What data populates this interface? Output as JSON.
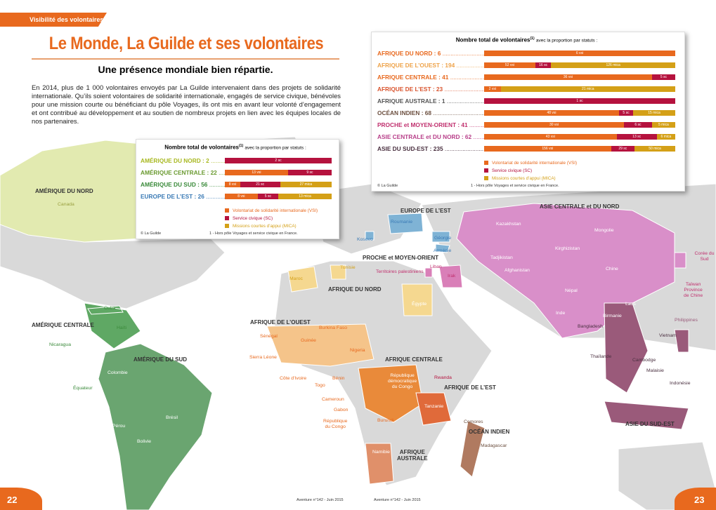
{
  "header": {
    "tab": "Visibilité des volontaires",
    "title": "Le Monde, La Guilde et ses volontaires",
    "subtitle": "Une présence mondiale bien répartie.",
    "paragraph": "En 2014, plus de 1 000 volontaires envoyés par La Guilde intervenaient dans des projets de solidarité internationale. Qu’ils soient volontaires de solidarité internationale, engagés de service civique, bénévoles pour une mission courte ou bénéficiant du pôle Voyages, ils ont mis en avant leur volonté d’engagement et ont contribué au développement et au soutien de nombreux projets en lien avec les équipes locales de nos partenaires."
  },
  "boxes": [
    {
      "title": "Nombre total de volontaires",
      "title_note": "(1)",
      "title_suffix": "avec la proportion par statuts :",
      "rows": [
        {
          "label": "AFRIQUE DU NORD : 6",
          "color": "#e8691e",
          "segments": [
            {
              "value": 6,
              "label": "6 vsi",
              "color": "#e8691e"
            }
          ]
        },
        {
          "label": "AFRIQUE DE L’OUEST : 194",
          "color": "#eea34a",
          "segments": [
            {
              "value": 52,
              "label": "52 vsi",
              "color": "#e8691e"
            },
            {
              "value": 16,
              "label": "16 sc",
              "color": "#b5123e"
            },
            {
              "value": 126,
              "label": "126 mica",
              "color": "#d4a017"
            }
          ]
        },
        {
          "label": "AFRIQUE CENTRALE : 41",
          "color": "#e8691e",
          "segments": [
            {
              "value": 36,
              "label": "36 vsi",
              "color": "#e8691e"
            },
            {
              "value": 5,
              "label": "5 sc",
              "color": "#b5123e"
            }
          ]
        },
        {
          "label": "AFRIQUE DE L’EST : 23",
          "color": "#d9542e",
          "segments": [
            {
              "value": 2,
              "label": "2 vsi",
              "color": "#e8691e"
            },
            {
              "value": 21,
              "label": "21 mica",
              "color": "#d4a017"
            }
          ]
        },
        {
          "label": "AFRIQUE AUSTRALE : 1",
          "color": "#555555",
          "segments": [
            {
              "value": 1,
              "label": "1 sc",
              "color": "#b5123e"
            }
          ]
        },
        {
          "label": "OCÉAN INDIEN : 68",
          "color": "#6b4e3e",
          "segments": [
            {
              "value": 48,
              "label": "48 vsi",
              "color": "#e8691e"
            },
            {
              "value": 5,
              "label": "5 sc",
              "color": "#b5123e"
            },
            {
              "value": 15,
              "label": "15 mica",
              "color": "#d4a017"
            }
          ]
        },
        {
          "label": "PROCHE et MOYEN-ORIENT : 41",
          "color": "#c0306e",
          "segments": [
            {
              "value": 30,
              "label": "30 vsi",
              "color": "#e8691e"
            },
            {
              "value": 6,
              "label": "6 sc",
              "color": "#b5123e"
            },
            {
              "value": 5,
              "label": "5 mica",
              "color": "#d4a017"
            }
          ]
        },
        {
          "label": "ASIE CENTRALE et DU NORD : 62",
          "color": "#b8408a",
          "segments": [
            {
              "value": 43,
              "label": "43 vsi",
              "color": "#e8691e"
            },
            {
              "value": 13,
              "label": "13 sc",
              "color": "#b5123e"
            },
            {
              "value": 6,
              "label": "6 mica",
              "color": "#d4a017"
            }
          ]
        },
        {
          "label": "ASIE DU SUD-EST : 235",
          "color": "#4a3040",
          "segments": [
            {
              "value": 156,
              "label": "156 vsi",
              "color": "#e8691e"
            },
            {
              "value": 29,
              "label": "29 sc",
              "color": "#b5123e"
            },
            {
              "value": 50,
              "label": "50 mica",
              "color": "#d4a017"
            }
          ]
        }
      ],
      "legend": [
        {
          "text": "Volontariat de solidarité internationale (VSI)",
          "color": "#e8691e"
        },
        {
          "text": "Service civique (SC)",
          "color": "#b5123e"
        },
        {
          "text": "Missions courtes d’appui (MICA)",
          "color": "#d4a017"
        }
      ],
      "footnote": "1 - Hors pôle Voyages et service civique en France.",
      "credit": "© La Guilde"
    },
    {
      "title": "Nombre total de volontaires",
      "title_note": "(1)",
      "title_suffix": "avec la proportion par statuts :",
      "rows": [
        {
          "label": "AMÉRIQUE DU NORD : 2",
          "color": "#a8b820",
          "segments": [
            {
              "value": 2,
              "label": "2 sc",
              "color": "#b5123e"
            }
          ]
        },
        {
          "label": "AMÉRIQUE CENTRALE : 22",
          "color": "#6a9a30",
          "segments": [
            {
              "value": 13,
              "label": "13 vsi",
              "color": "#e8691e"
            },
            {
              "value": 9,
              "label": "9 sc",
              "color": "#b5123e"
            }
          ]
        },
        {
          "label": "AMÉRIQUE DU SUD : 56",
          "color": "#3a8a3a",
          "segments": [
            {
              "value": 8,
              "label": "8 vsi",
              "color": "#e8691e"
            },
            {
              "value": 21,
              "label": "21 sc",
              "color": "#b5123e"
            },
            {
              "value": 27,
              "label": "27 mica",
              "color": "#d4a017"
            }
          ]
        },
        {
          "label": "EUROPE DE L’EST : 26",
          "color": "#3a7ab5",
          "segments": [
            {
              "value": 8,
              "label": "8 vsi",
              "color": "#e8691e"
            },
            {
              "value": 5,
              "label": "5 sc",
              "color": "#b5123e"
            },
            {
              "value": 13,
              "label": "13 mica",
              "color": "#d4a017"
            }
          ]
        }
      ],
      "legend": [
        {
          "text": "Volontariat de solidarité internationale (VSI)",
          "color": "#e8691e"
        },
        {
          "text": "Service civique (SC)",
          "color": "#b5123e"
        },
        {
          "text": "Missions courtes d’appui (MICA)",
          "color": "#d4a017"
        }
      ],
      "footnote": "1 - Hors pôle Voyages et service civique en France.",
      "credit": "© La Guilde"
    }
  ],
  "map_labels": [
    "AMÉRIQUE DU NORD",
    "Canada",
    "AMÉRIQUE CENTRALE",
    "Cuba",
    "Haïti",
    "Nicaragua",
    "AMÉRIQUE DU SUD",
    "Colombie",
    "Équateur",
    "Pérou",
    "Brésil",
    "Bolivie",
    "EUROPE DE L’EST",
    "Roumanie",
    "Kosovo",
    "Géorgie",
    "Arménie",
    "PROCHE et MOYEN-ORIENT",
    "Territoires palestiniens",
    "Liban",
    "Irak",
    "AFRIQUE DU NORD",
    "Maroc",
    "Tunisie",
    "Égypte",
    "AFRIQUE DE L’OUEST",
    "Burkina Faso",
    "Sénégal",
    "Guinée",
    "Nigeria",
    "Sierra Léone",
    "Côte d’Ivoire",
    "Bénin",
    "Togo",
    "AFRIQUE CENTRALE",
    "Cameroun",
    "Gabon",
    "République\ndu Congo",
    "République\ndémocratique\ndu Congo",
    "Rwanda",
    "Burundi",
    "AFRIQUE DE L’EST",
    "Tanzanie",
    "AFRIQUE\nAUSTRALE",
    "Namibie",
    "OCÉAN INDIEN",
    "Comores",
    "Madagascar",
    "ASIE CENTRALE et DU NORD",
    "Kazakhstan",
    "Mongolie",
    "Kirghizistan",
    "Tadjikistan",
    "Afghanistan",
    "Chine",
    "Corée du Sud",
    "Taïwan\nProvince\nde Chine",
    "Népal",
    "Inde",
    "Bangladesh",
    "Birmanie",
    "Laos",
    "Philippines",
    "Vietnam",
    "Thaïlande",
    "Cambodge",
    "Malaisie",
    "Indonésie",
    "ASIE DU SUD-EST"
  ],
  "footer": {
    "left_page": "22",
    "right_page": "23",
    "left_issue": "Aventure n°142 - Juin 2015",
    "right_issue": "Aventure n°142 - Juin 2015"
  }
}
